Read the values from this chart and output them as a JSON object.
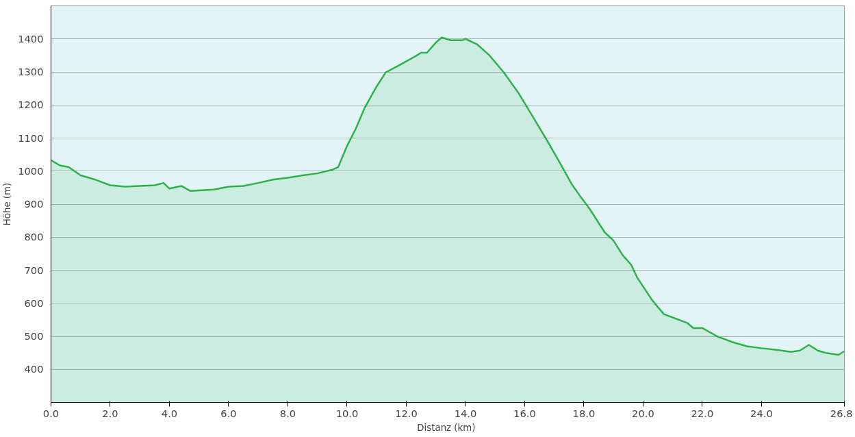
{
  "chart_data": {
    "type": "area",
    "xlabel": "Distanz  (km)",
    "ylabel": "Höhe (m)",
    "xlim": [
      0,
      26.8
    ],
    "ylim": [
      300,
      1500
    ],
    "xticks": [
      {
        "value": 0,
        "label": "0.0"
      },
      {
        "value": 2,
        "label": "2.0"
      },
      {
        "value": 4,
        "label": "4.0"
      },
      {
        "value": 6,
        "label": "6.0"
      },
      {
        "value": 8,
        "label": "8.0"
      },
      {
        "value": 10,
        "label": "10.0"
      },
      {
        "value": 12,
        "label": "12.0"
      },
      {
        "value": 14,
        "label": "14.0"
      },
      {
        "value": 16,
        "label": "16.0"
      },
      {
        "value": 18,
        "label": "18.0"
      },
      {
        "value": 20,
        "label": "20.0"
      },
      {
        "value": 22,
        "label": "22.0"
      },
      {
        "value": 24,
        "label": "24.0"
      },
      {
        "value": 26.8,
        "label": "26.8"
      }
    ],
    "yticks": [
      400,
      500,
      600,
      700,
      800,
      900,
      1000,
      1100,
      1200,
      1300,
      1400
    ],
    "grid": "y",
    "x": [
      0,
      0.3,
      0.6,
      1.0,
      1.5,
      2.0,
      2.5,
      3.0,
      3.5,
      3.8,
      4.0,
      4.4,
      4.7,
      5.5,
      6.0,
      6.5,
      7.0,
      7.5,
      8.0,
      8.5,
      9.0,
      9.5,
      9.7,
      10.0,
      10.3,
      10.6,
      11.0,
      11.3,
      11.8,
      12.3,
      12.5,
      12.7,
      13.0,
      13.2,
      13.5,
      13.9,
      14.0,
      14.4,
      14.8,
      15.3,
      15.8,
      16.3,
      16.8,
      17.2,
      17.6,
      17.9,
      18.2,
      18.7,
      19.0,
      19.3,
      19.6,
      19.8,
      20.3,
      20.7,
      21.0,
      21.5,
      21.7,
      22.0,
      22.5,
      23.0,
      23.5,
      24.0,
      24.5,
      25.0,
      25.3,
      25.6,
      25.9,
      26.2,
      26.6,
      26.8
    ],
    "series": [
      {
        "color": "#2db34a",
        "values": [
          1033,
          1017,
          1012,
          987,
          974,
          957,
          953,
          955,
          957,
          964,
          947,
          955,
          940,
          944,
          953,
          955,
          964,
          974,
          980,
          987,
          993,
          1004,
          1012,
          1076,
          1129,
          1192,
          1256,
          1298,
          1322,
          1347,
          1358,
          1358,
          1389,
          1404,
          1396,
          1396,
          1400,
          1383,
          1351,
          1298,
          1235,
          1161,
          1086,
          1023,
          959,
          921,
          885,
          815,
          790,
          747,
          716,
          678,
          610,
          567,
          557,
          540,
          525,
          525,
          500,
          483,
          470,
          464,
          459,
          453,
          457,
          474,
          457,
          449,
          444,
          455
        ]
      }
    ]
  }
}
